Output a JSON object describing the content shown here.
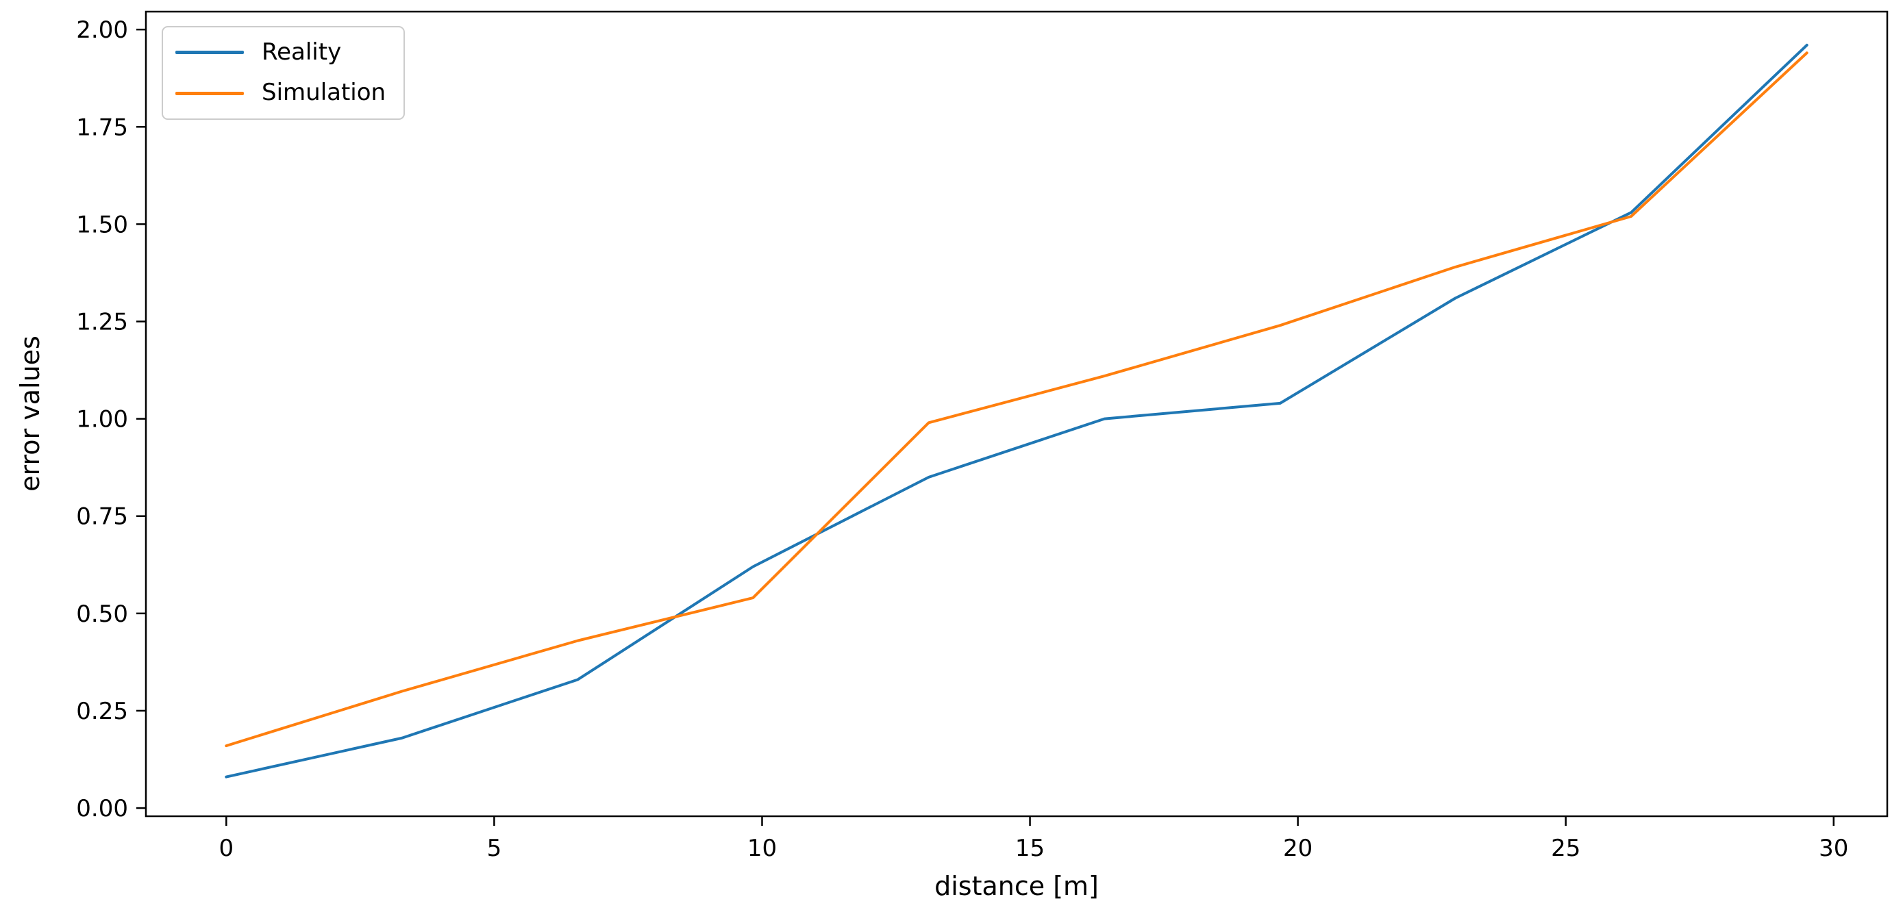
{
  "chart_data": {
    "type": "line",
    "title": "",
    "xlabel": "distance [m]",
    "ylabel": "error values",
    "x": [
      0,
      3.28,
      6.56,
      9.83,
      13.11,
      16.39,
      19.67,
      22.94,
      26.22,
      29.5
    ],
    "series": [
      {
        "name": "Reality",
        "color": "#1f77b4",
        "values": [
          0.08,
          0.18,
          0.33,
          0.62,
          0.85,
          1.0,
          1.04,
          1.31,
          1.53,
          1.96
        ]
      },
      {
        "name": "Simulation",
        "color": "#ff7f0e",
        "values": [
          0.16,
          0.3,
          0.43,
          0.54,
          0.99,
          1.11,
          1.24,
          1.39,
          1.52,
          1.94
        ]
      }
    ],
    "xticks": [
      {
        "value": 0,
        "label": "0"
      },
      {
        "value": 5,
        "label": "5"
      },
      {
        "value": 10,
        "label": "10"
      },
      {
        "value": 15,
        "label": "15"
      },
      {
        "value": 20,
        "label": "20"
      },
      {
        "value": 25,
        "label": "25"
      },
      {
        "value": 30,
        "label": "30"
      }
    ],
    "yticks": [
      {
        "value": 0.0,
        "label": "0.00"
      },
      {
        "value": 0.25,
        "label": "0.25"
      },
      {
        "value": 0.5,
        "label": "0.50"
      },
      {
        "value": 0.75,
        "label": "0.75"
      },
      {
        "value": 1.0,
        "label": "1.00"
      },
      {
        "value": 1.25,
        "label": "1.25"
      },
      {
        "value": 1.5,
        "label": "1.50"
      },
      {
        "value": 1.75,
        "label": "1.75"
      },
      {
        "value": 2.0,
        "label": "2.00"
      }
    ],
    "xlim": [
      -1.5,
      31.0
    ],
    "ylim": [
      -0.021,
      2.046
    ],
    "grid": false,
    "legend_position": "upper-left",
    "spine_color": "#000000",
    "tick_label_color": "#000000"
  }
}
